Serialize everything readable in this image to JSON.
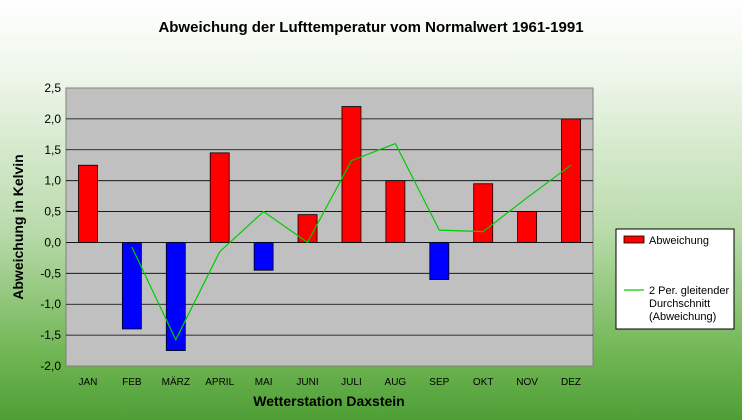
{
  "chart_data": {
    "type": "bar",
    "title": "Abweichung der Lufttemperatur vom Normalwert 1961-1991",
    "xlabel": "Wetterstation Daxstein",
    "ylabel": "Abweichung in Kelvin",
    "categories": [
      "JAN",
      "FEB",
      "MÄRZ",
      "APRIL",
      "MAI",
      "JUNI",
      "JULI",
      "AUG",
      "SEP",
      "OKT",
      "NOV",
      "DEZ"
    ],
    "yticks": [
      "2,5",
      "2,0",
      "1,5",
      "1,0",
      "0,5",
      "0,0",
      "-0,5",
      "-1,0",
      "-1,5",
      "-2,0"
    ],
    "ylim": [
      -2.0,
      2.5
    ],
    "grid": true,
    "legend_position": "right",
    "series": [
      {
        "name": "Abweichung",
        "type": "bar",
        "values": [
          1.25,
          -1.4,
          -1.75,
          1.45,
          -0.45,
          0.45,
          2.2,
          1.0,
          -0.6,
          0.95,
          0.5,
          2.0
        ],
        "positive_color": "#ff0000",
        "negative_color": "#0000ff"
      },
      {
        "name": "2 Per. gleitender Durchschnitt (Abweichung)",
        "legend_lines": [
          "2 Per. gleitender",
          "Durchschnitt",
          "(Abweichung)"
        ],
        "type": "line",
        "values": [
          null,
          -0.075,
          -1.575,
          -0.15,
          0.5,
          0.0,
          1.325,
          1.6,
          0.2,
          0.175,
          0.725,
          1.25
        ],
        "color": "#00cc00"
      }
    ],
    "colors": {
      "plot_background": "#c0c0c0",
      "gridline": "#000000"
    }
  }
}
